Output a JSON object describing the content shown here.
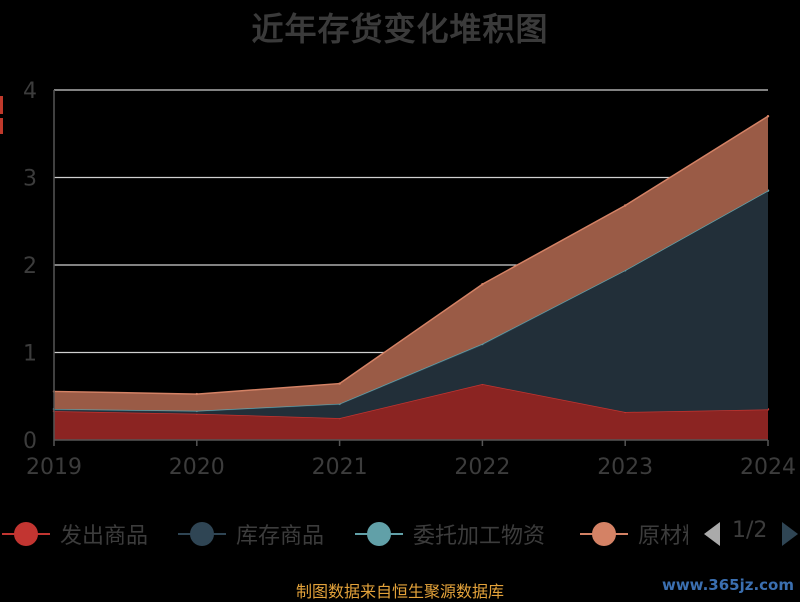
{
  "chart_data": {
    "type": "area",
    "title": "近年存货变化堆积图",
    "x": [
      "2019",
      "2020",
      "2021",
      "2022",
      "2023",
      "2024"
    ],
    "ylim": [
      0,
      4
    ],
    "yticks": [
      "0",
      "1",
      "2",
      "3",
      "4"
    ],
    "stacked": true,
    "grid": true,
    "legend_position": "bottom",
    "series": [
      {
        "name": "发出商品",
        "color": "#c23531",
        "fill": "#8b2422",
        "values": [
          0.33,
          0.3,
          0.25,
          0.64,
          0.32,
          0.35
        ]
      },
      {
        "name": "库存商品",
        "color": "#2f4554",
        "fill": "#222f39",
        "values": [
          0.02,
          0.03,
          0.16,
          0.45,
          1.62,
          2.5
        ]
      },
      {
        "name": "委托加工物资",
        "color": "#61a0a8",
        "fill": "#4a7a80",
        "values": [
          0.005,
          0.005,
          0.005,
          0.01,
          0.0,
          0.0
        ]
      },
      {
        "name": "原材料",
        "color": "#d48265",
        "fill": "#9a5b46",
        "values": [
          0.2,
          0.19,
          0.23,
          0.68,
          0.74,
          0.85
        ]
      }
    ]
  },
  "legend": {
    "page_info": "1/2"
  },
  "footer": {
    "source": "制图数据来自恒生聚源数据库",
    "watermark": "www.365jz.com"
  },
  "colors": {
    "background": "#000000",
    "axis": "#555555",
    "gridline": "#d0d0d0",
    "tick_label": "#3c3c3c"
  }
}
